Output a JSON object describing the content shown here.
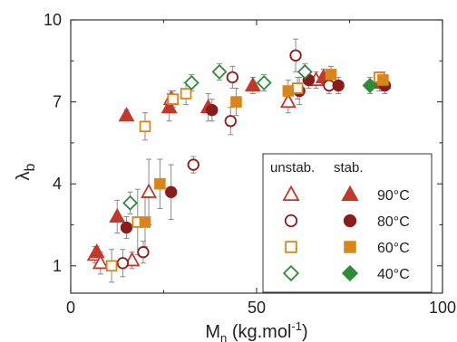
{
  "chart_data": {
    "type": "scatter",
    "title": "",
    "xlabel": {
      "main": "M",
      "sub": "n",
      "rest": " (kg.mol",
      "sup": "-1",
      "end": ")"
    },
    "ylabel": {
      "main": "λ",
      "sub": "b"
    },
    "xlim": [
      0,
      100
    ],
    "ylim": [
      0,
      10
    ],
    "xticks": [
      0,
      50,
      100
    ],
    "yticks": [
      1,
      4,
      7,
      10
    ],
    "xtick_labels": [
      "0",
      "50",
      "100"
    ],
    "ytick_labels": [
      "1",
      "4",
      "7",
      "10"
    ],
    "legend": {
      "placement": "bottom-right",
      "header_unstab": "unstab.",
      "header_stab": "stab.",
      "entries": [
        {
          "temp": "90°C",
          "marker": "triangle",
          "color": "#c0392b"
        },
        {
          "temp": "80°C",
          "marker": "circle",
          "color": "#8b1a1a"
        },
        {
          "temp": "60°C",
          "marker": "square",
          "color": "#d8861c"
        },
        {
          "temp": "40°C",
          "marker": "diamond",
          "color": "#2e8b3a"
        }
      ]
    },
    "series": [
      {
        "marker": "triangle",
        "filled": false,
        "color": "#c0392b",
        "points": [
          {
            "x": 6.5,
            "y": 1.4,
            "err": 0.3
          },
          {
            "x": 8,
            "y": 1.1,
            "err": 0.4
          },
          {
            "x": 16.5,
            "y": 1.2,
            "err": 0.3
          },
          {
            "x": 21,
            "y": 3.7,
            "err": 1.2
          },
          {
            "x": 27,
            "y": 7.1,
            "err": 0.3
          },
          {
            "x": 58.5,
            "y": 7.0,
            "err": 0.4
          },
          {
            "x": 66,
            "y": 7.8,
            "err": 0.3
          },
          {
            "x": 84,
            "y": 7.7,
            "err": 0.3
          }
        ]
      },
      {
        "marker": "triangle",
        "filled": true,
        "color": "#c0392b",
        "points": [
          {
            "x": 7,
            "y": 1.5,
            "err": 0.2
          },
          {
            "x": 12.5,
            "y": 2.8,
            "err": 0.6
          },
          {
            "x": 15,
            "y": 6.5,
            "err": 0.2
          },
          {
            "x": 26.5,
            "y": 6.8,
            "err": 0.5
          },
          {
            "x": 37,
            "y": 6.8,
            "err": 0.5
          },
          {
            "x": 49,
            "y": 7.6,
            "err": 0.3
          },
          {
            "x": 68,
            "y": 7.9,
            "err": 0.3
          },
          {
            "x": 83,
            "y": 7.7,
            "err": 0.3
          }
        ]
      },
      {
        "marker": "circle",
        "filled": false,
        "color": "#8b1a1a",
        "points": [
          {
            "x": 14,
            "y": 1.1,
            "err": 0.5
          },
          {
            "x": 19.5,
            "y": 1.5,
            "err": 0.4
          },
          {
            "x": 33,
            "y": 4.7,
            "err": 0.3
          },
          {
            "x": 43,
            "y": 6.3,
            "err": 0.5
          },
          {
            "x": 43.5,
            "y": 7.9,
            "err": 0.4
          },
          {
            "x": 60.5,
            "y": 8.7,
            "err": 0.6
          },
          {
            "x": 69.5,
            "y": 7.6,
            "err": 0.3
          }
        ]
      },
      {
        "marker": "circle",
        "filled": true,
        "color": "#8b1a1a",
        "points": [
          {
            "x": 15,
            "y": 2.4,
            "err": 0.4
          },
          {
            "x": 27,
            "y": 3.7,
            "err": 1.0
          },
          {
            "x": 38,
            "y": 6.7,
            "err": 0.4
          },
          {
            "x": 61.5,
            "y": 7.4,
            "err": 0.5
          },
          {
            "x": 64,
            "y": 7.8,
            "err": 0.3
          },
          {
            "x": 72,
            "y": 7.6,
            "err": 0.3
          },
          {
            "x": 84.5,
            "y": 7.6,
            "err": 0.3
          }
        ]
      },
      {
        "marker": "square",
        "filled": false,
        "color": "#d8861c",
        "points": [
          {
            "x": 11,
            "y": 1.0,
            "err": 0.6
          },
          {
            "x": 18,
            "y": 2.6,
            "err": 1.2
          },
          {
            "x": 20,
            "y": 6.1,
            "err": 0.5
          },
          {
            "x": 27.5,
            "y": 7.1,
            "err": 0.3
          },
          {
            "x": 31,
            "y": 7.3,
            "err": 0.4
          },
          {
            "x": 61,
            "y": 7.5,
            "err": 0.4
          },
          {
            "x": 83,
            "y": 7.9,
            "err": 0.2
          }
        ]
      },
      {
        "marker": "square",
        "filled": true,
        "color": "#d8861c",
        "points": [
          {
            "x": 20,
            "y": 2.6,
            "err": 0.9
          },
          {
            "x": 24,
            "y": 4.0,
            "err": 0.9
          },
          {
            "x": 44.5,
            "y": 7.0,
            "err": 0.5
          },
          {
            "x": 58.5,
            "y": 7.4,
            "err": 0.4
          },
          {
            "x": 70,
            "y": 8.0,
            "err": 0.3
          },
          {
            "x": 84,
            "y": 7.8,
            "err": 0.3
          }
        ]
      },
      {
        "marker": "diamond",
        "filled": false,
        "color": "#2e8b3a",
        "points": [
          {
            "x": 16,
            "y": 3.3,
            "err": 0.4
          },
          {
            "x": 32.5,
            "y": 7.7,
            "err": 0.3
          },
          {
            "x": 40,
            "y": 8.1,
            "err": 0.3
          },
          {
            "x": 52,
            "y": 7.7,
            "err": 0.3
          },
          {
            "x": 63,
            "y": 8.1,
            "err": 0.3
          }
        ]
      },
      {
        "marker": "diamond",
        "filled": true,
        "color": "#2e8b3a",
        "points": [
          {
            "x": 80.5,
            "y": 7.6,
            "err": 0.3
          }
        ]
      }
    ]
  }
}
